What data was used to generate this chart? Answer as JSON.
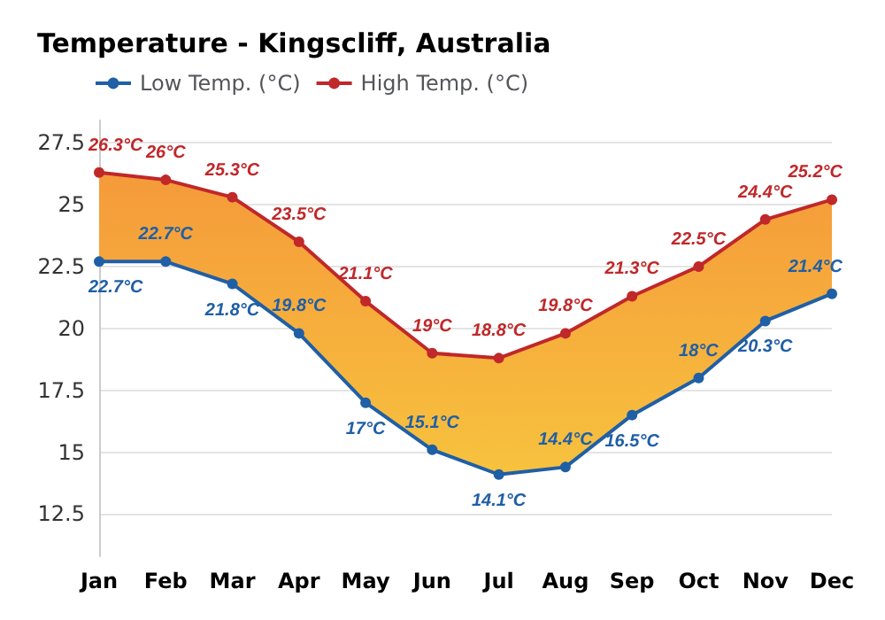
{
  "chart_data": {
    "type": "line",
    "title": "Temperature - Kingscliff, Australia",
    "categories": [
      "Jan",
      "Feb",
      "Mar",
      "Apr",
      "May",
      "Jun",
      "Jul",
      "Aug",
      "Sep",
      "Oct",
      "Nov",
      "Dec"
    ],
    "series": [
      {
        "name": "Low Temp. (°C)",
        "color": "#1f5fa6",
        "values": [
          22.7,
          22.7,
          21.8,
          19.8,
          17,
          15.1,
          14.1,
          14.4,
          16.5,
          18,
          20.3,
          21.4
        ],
        "value_labels": [
          "22.7°C",
          "22.7°C",
          "21.8°C",
          "19.8°C",
          "17°C",
          "15.1°C",
          "14.1°C",
          "14.4°C",
          "16.5°C",
          "18°C",
          "20.3°C",
          "21.4°C"
        ]
      },
      {
        "name": "High Temp. (°C)",
        "type": "area",
        "color": "#c0282a",
        "values": [
          26.3,
          26,
          25.3,
          23.5,
          21.1,
          19,
          18.8,
          19.8,
          21.3,
          22.5,
          24.4,
          25.2
        ],
        "value_labels": [
          "26.3°C",
          "26°C",
          "25.3°C",
          "23.5°C",
          "21.1°C",
          "19°C",
          "18.8°C",
          "19.8°C",
          "21.3°C",
          "22.5°C",
          "24.4°C",
          "25.2°C"
        ]
      }
    ],
    "ylim": [
      10.8,
      28.4
    ],
    "yticks": [
      12.5,
      15,
      17.5,
      20,
      22.5,
      25,
      27.5
    ],
    "grid": "y",
    "legend": "top left",
    "marker": "circle",
    "line_style": "solid"
  }
}
